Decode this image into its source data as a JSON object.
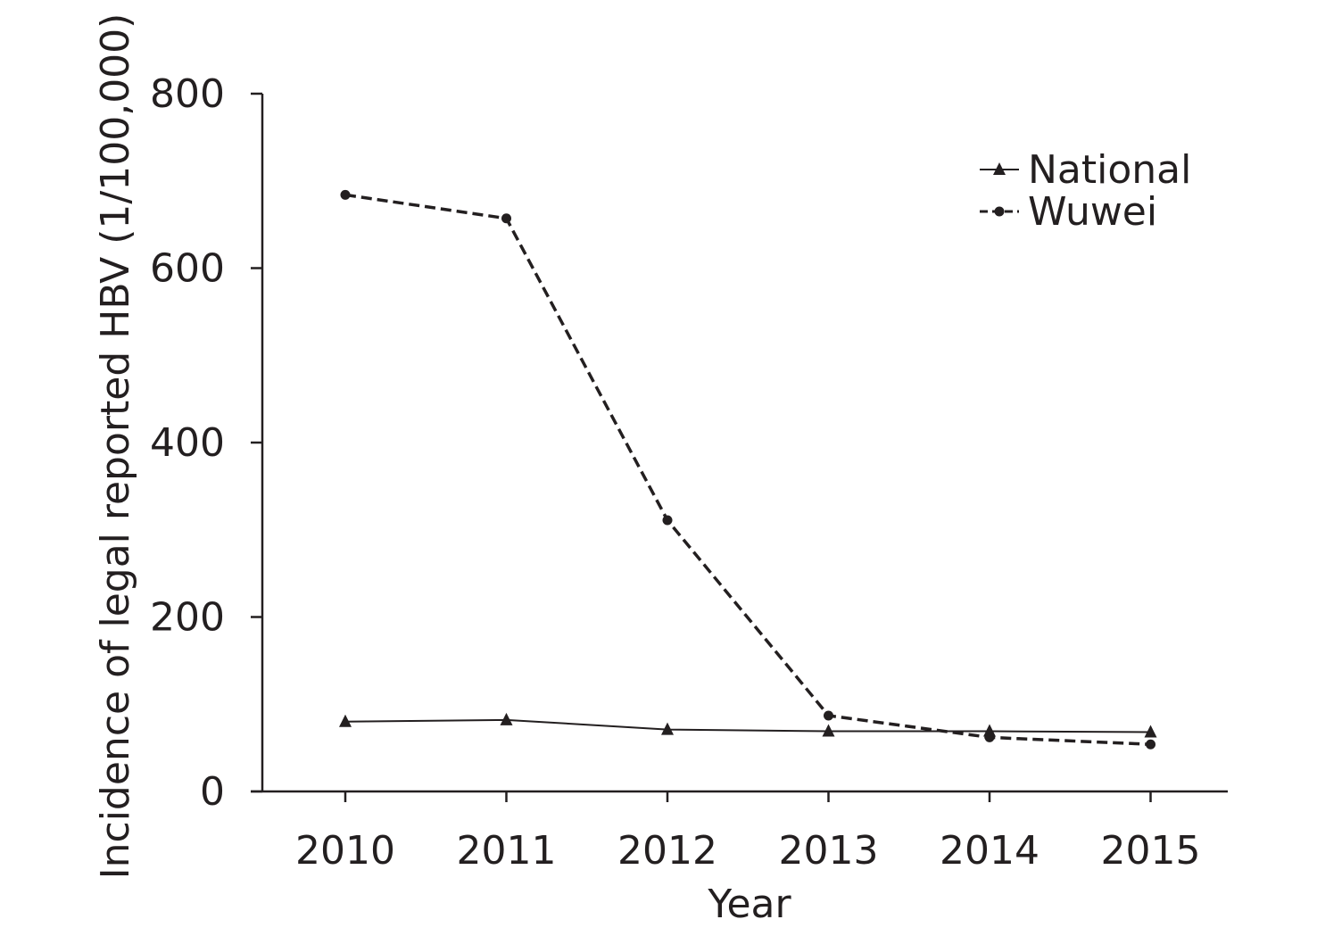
{
  "chart_data": {
    "type": "line",
    "title": "",
    "xlabel": "Year",
    "ylabel": "Incidence of legal reported HBV (1/100,000)",
    "categories": [
      "2010",
      "2011",
      "2012",
      "2013",
      "2014",
      "2015"
    ],
    "ylim": [
      0,
      800
    ],
    "yticks": [
      0,
      200,
      400,
      600,
      800
    ],
    "grid": false,
    "legend_position": "top-right",
    "series": [
      {
        "name": "National",
        "marker": "triangle",
        "line_style": "solid",
        "color": "#231f20",
        "values": [
          80,
          82,
          71,
          69,
          69,
          68
        ]
      },
      {
        "name": "Wuwei",
        "marker": "circle",
        "line_style": "dashed",
        "color": "#231f20",
        "values": [
          684,
          657,
          311,
          87,
          62,
          54
        ]
      }
    ]
  }
}
